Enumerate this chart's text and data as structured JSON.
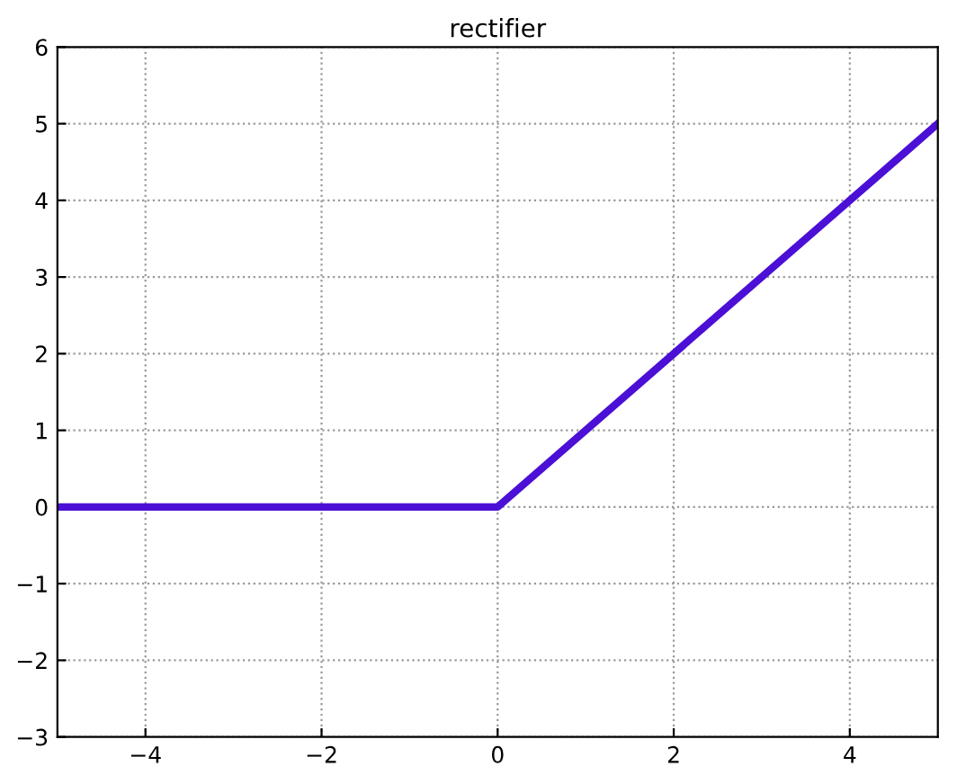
{
  "chart_data": {
    "type": "line",
    "title": "rectifier",
    "x": [
      -5,
      0,
      5
    ],
    "series": [
      {
        "color": "#4b0fd6",
        "values": [
          0,
          0,
          5
        ]
      }
    ],
    "xlim": [
      -5,
      5
    ],
    "xticks": [
      {
        "value": -4,
        "label": "−4"
      },
      {
        "value": -2,
        "label": "−2"
      },
      0,
      2,
      4
    ],
    "ylim": [
      -3,
      6
    ],
    "yticks": [
      {
        "value": -3,
        "label": "−3"
      },
      {
        "value": -2,
        "label": "−2"
      },
      {
        "value": -1,
        "label": "−1"
      },
      0,
      1,
      2,
      3,
      4,
      5,
      6
    ],
    "grid": true,
    "line_style": "solid"
  }
}
